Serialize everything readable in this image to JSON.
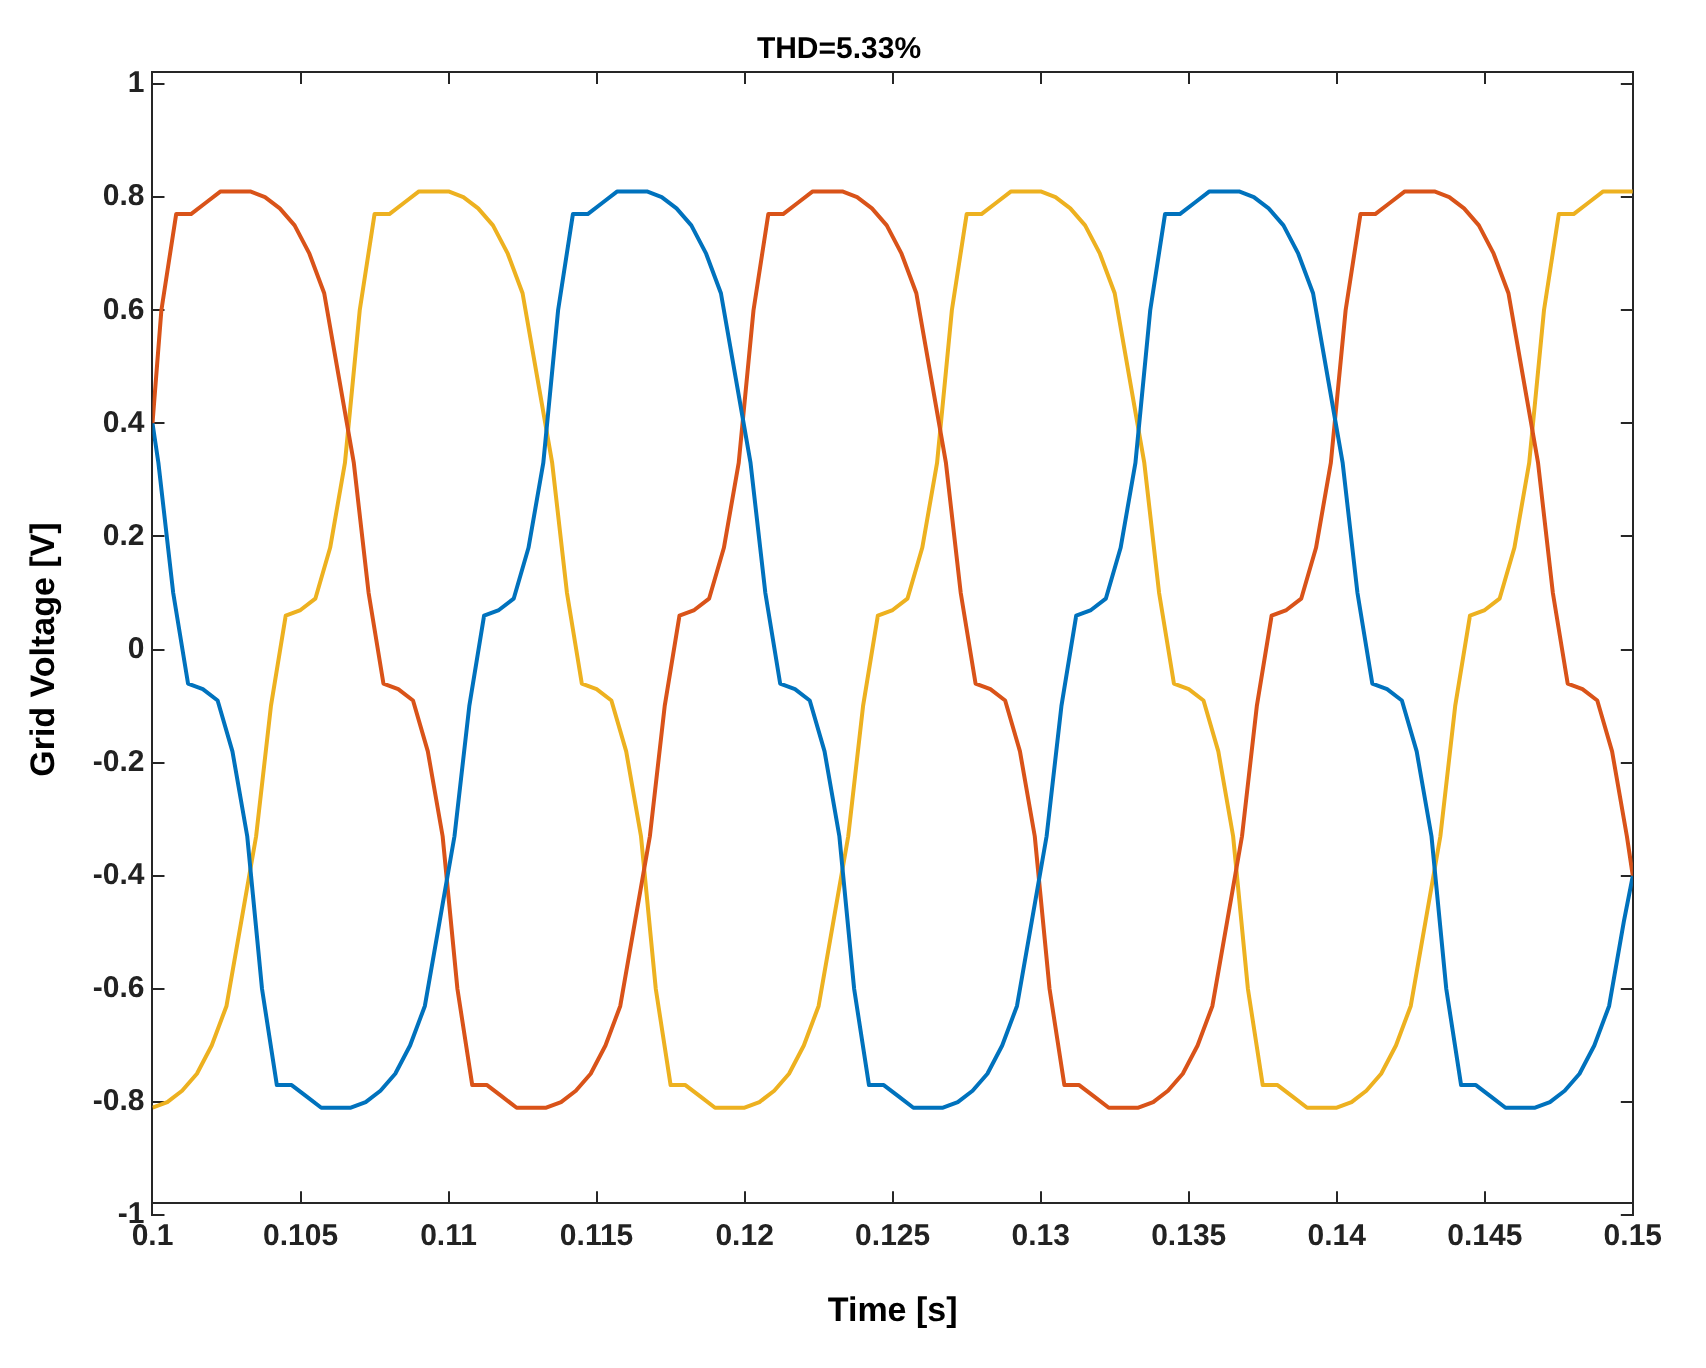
{
  "chart_data": {
    "type": "line",
    "title": "THD=5.33%",
    "xlabel": "Time [s]",
    "ylabel": "Grid Voltage [V]",
    "xlim": [
      0.1,
      0.15
    ],
    "xticks": [
      0.1,
      0.105,
      0.11,
      0.115,
      0.12,
      0.125,
      0.13,
      0.135,
      0.14,
      0.145,
      0.15
    ],
    "ylim": [
      -1,
      1
    ],
    "yticks": [
      -1,
      -0.8,
      -0.6,
      -0.4,
      -0.2,
      0,
      0.2,
      0.4,
      0.6,
      0.8,
      1
    ],
    "grid": false,
    "legend": false,
    "marker": "none",
    "line_style": "solid",
    "series": [
      {
        "color": "#0072bd",
        "x": [
          0.1,
          0.1002,
          0.1007,
          0.1012,
          0.1017,
          0.1022,
          0.1027,
          0.1032,
          0.1037,
          0.1042,
          0.1047,
          0.1052,
          0.1057,
          0.1062,
          0.1067,
          0.1072,
          0.1077,
          0.1082,
          0.1087,
          0.1092,
          0.1097,
          0.1102,
          0.1107,
          0.1112,
          0.1117,
          0.1122,
          0.1127,
          0.1132,
          0.1137,
          0.1142,
          0.1147,
          0.1152,
          0.1157,
          0.1162,
          0.1167,
          0.1172,
          0.1177,
          0.1182,
          0.1187,
          0.1192,
          0.1197,
          0.1202,
          0.1207,
          0.1212,
          0.1217,
          0.1222,
          0.1227,
          0.1232,
          0.1237,
          0.1242,
          0.1247,
          0.1252,
          0.1257,
          0.1262,
          0.1267,
          0.1272,
          0.1277,
          0.1282,
          0.1287,
          0.1292,
          0.1297,
          0.1302,
          0.1307,
          0.1312,
          0.1317,
          0.1322,
          0.1327,
          0.1332,
          0.1337,
          0.1342,
          0.1347,
          0.1352,
          0.1357,
          0.1362,
          0.1367,
          0.1372,
          0.1377,
          0.1382,
          0.1387,
          0.1392,
          0.1397,
          0.1402,
          0.1407,
          0.1412,
          0.1417,
          0.1422,
          0.1427,
          0.1432,
          0.1437,
          0.1442,
          0.1447,
          0.1452,
          0.1457,
          0.1462,
          0.1467,
          0.1472,
          0.1477,
          0.1482,
          0.1487,
          0.1492,
          0.1497,
          0.15
        ],
        "values": [
          0.4,
          0.33,
          0.1,
          -0.06,
          -0.07,
          -0.09,
          -0.18,
          -0.33,
          -0.6,
          -0.77,
          -0.77,
          -0.79,
          -0.81,
          -0.81,
          -0.81,
          -0.8,
          -0.78,
          -0.75,
          -0.7,
          -0.63,
          -0.48,
          -0.33,
          -0.1,
          0.06,
          0.07,
          0.09,
          0.18,
          0.33,
          0.6,
          0.77,
          0.77,
          0.79,
          0.81,
          0.81,
          0.81,
          0.8,
          0.78,
          0.75,
          0.7,
          0.63,
          0.48,
          0.33,
          0.1,
          -0.06,
          -0.07,
          -0.09,
          -0.18,
          -0.33,
          -0.6,
          -0.77,
          -0.77,
          -0.79,
          -0.81,
          -0.81,
          -0.81,
          -0.8,
          -0.78,
          -0.75,
          -0.7,
          -0.63,
          -0.48,
          -0.33,
          -0.1,
          0.06,
          0.07,
          0.09,
          0.18,
          0.33,
          0.6,
          0.77,
          0.77,
          0.79,
          0.81,
          0.81,
          0.81,
          0.8,
          0.78,
          0.75,
          0.7,
          0.63,
          0.48,
          0.33,
          0.1,
          -0.06,
          -0.07,
          -0.09,
          -0.18,
          -0.33,
          -0.6,
          -0.77,
          -0.77,
          -0.79,
          -0.81,
          -0.81,
          -0.81,
          -0.8,
          -0.78,
          -0.75,
          -0.7,
          -0.63,
          -0.48,
          -0.4
        ]
      },
      {
        "color": "#d95319",
        "x": [
          0.1,
          0.1003,
          0.1008,
          0.1013,
          0.1018,
          0.1023,
          0.1028,
          0.1033,
          0.1038,
          0.1043,
          0.1048,
          0.1053,
          0.1058,
          0.1063,
          0.1068,
          0.1073,
          0.1078,
          0.1083,
          0.1088,
          0.1093,
          0.1098,
          0.1103,
          0.1108,
          0.1113,
          0.1118,
          0.1123,
          0.1128,
          0.1133,
          0.1138,
          0.1143,
          0.1148,
          0.1153,
          0.1158,
          0.1163,
          0.1168,
          0.1173,
          0.1178,
          0.1183,
          0.1188,
          0.1193,
          0.1198,
          0.1203,
          0.1208,
          0.1213,
          0.1218,
          0.1223,
          0.1228,
          0.1233,
          0.1238,
          0.1243,
          0.1248,
          0.1253,
          0.1258,
          0.1263,
          0.1268,
          0.1273,
          0.1278,
          0.1283,
          0.1288,
          0.1293,
          0.1298,
          0.1303,
          0.1308,
          0.1313,
          0.1318,
          0.1323,
          0.1328,
          0.1333,
          0.1338,
          0.1343,
          0.1348,
          0.1353,
          0.1358,
          0.1363,
          0.1368,
          0.1373,
          0.1378,
          0.1383,
          0.1388,
          0.1393,
          0.1398,
          0.1403,
          0.1408,
          0.1413,
          0.1418,
          0.1423,
          0.1428,
          0.1433,
          0.1438,
          0.1443,
          0.1448,
          0.1453,
          0.1458,
          0.1463,
          0.1468,
          0.1473,
          0.1478,
          0.1483,
          0.1488,
          0.1493,
          0.1498,
          0.15
        ],
        "values": [
          0.4,
          0.6,
          0.77,
          0.77,
          0.79,
          0.81,
          0.81,
          0.81,
          0.8,
          0.78,
          0.75,
          0.7,
          0.63,
          0.48,
          0.33,
          0.1,
          -0.06,
          -0.07,
          -0.09,
          -0.18,
          -0.33,
          -0.6,
          -0.77,
          -0.77,
          -0.79,
          -0.81,
          -0.81,
          -0.81,
          -0.8,
          -0.78,
          -0.75,
          -0.7,
          -0.63,
          -0.48,
          -0.33,
          -0.1,
          0.06,
          0.07,
          0.09,
          0.18,
          0.33,
          0.6,
          0.77,
          0.77,
          0.79,
          0.81,
          0.81,
          0.81,
          0.8,
          0.78,
          0.75,
          0.7,
          0.63,
          0.48,
          0.33,
          0.1,
          -0.06,
          -0.07,
          -0.09,
          -0.18,
          -0.33,
          -0.6,
          -0.77,
          -0.77,
          -0.79,
          -0.81,
          -0.81,
          -0.81,
          -0.8,
          -0.78,
          -0.75,
          -0.7,
          -0.63,
          -0.48,
          -0.33,
          -0.1,
          0.06,
          0.07,
          0.09,
          0.18,
          0.33,
          0.6,
          0.77,
          0.77,
          0.79,
          0.81,
          0.81,
          0.81,
          0.8,
          0.78,
          0.75,
          0.7,
          0.63,
          0.48,
          0.33,
          0.1,
          -0.06,
          -0.07,
          -0.09,
          -0.18,
          -0.33,
          -0.4
        ]
      },
      {
        "color": "#edb120",
        "x": [
          0.1,
          0.1005,
          0.101,
          0.1015,
          0.102,
          0.1025,
          0.103,
          0.1035,
          0.104,
          0.1045,
          0.105,
          0.1055,
          0.106,
          0.1065,
          0.107,
          0.1075,
          0.108,
          0.1085,
          0.109,
          0.1095,
          0.11,
          0.1105,
          0.111,
          0.1115,
          0.112,
          0.1125,
          0.113,
          0.1135,
          0.114,
          0.1145,
          0.115,
          0.1155,
          0.116,
          0.1165,
          0.117,
          0.1175,
          0.118,
          0.1185,
          0.119,
          0.1195,
          0.12,
          0.1205,
          0.121,
          0.1215,
          0.122,
          0.1225,
          0.123,
          0.1235,
          0.124,
          0.1245,
          0.125,
          0.1255,
          0.126,
          0.1265,
          0.127,
          0.1275,
          0.128,
          0.1285,
          0.129,
          0.1295,
          0.13,
          0.1305,
          0.131,
          0.1315,
          0.132,
          0.1325,
          0.133,
          0.1335,
          0.134,
          0.1345,
          0.135,
          0.1355,
          0.136,
          0.1365,
          0.137,
          0.1375,
          0.138,
          0.1385,
          0.139,
          0.1395,
          0.14,
          0.1405,
          0.141,
          0.1415,
          0.142,
          0.1425,
          0.143,
          0.1435,
          0.144,
          0.1445,
          0.145,
          0.1455,
          0.146,
          0.1465,
          0.147,
          0.1475,
          0.148,
          0.1485,
          0.149,
          0.1495,
          0.15
        ],
        "values": [
          -0.81,
          -0.8,
          -0.78,
          -0.75,
          -0.7,
          -0.63,
          -0.48,
          -0.33,
          -0.1,
          0.06,
          0.07,
          0.09,
          0.18,
          0.33,
          0.6,
          0.77,
          0.77,
          0.79,
          0.81,
          0.81,
          0.81,
          0.8,
          0.78,
          0.75,
          0.7,
          0.63,
          0.48,
          0.33,
          0.1,
          -0.06,
          -0.07,
          -0.09,
          -0.18,
          -0.33,
          -0.6,
          -0.77,
          -0.77,
          -0.79,
          -0.81,
          -0.81,
          -0.81,
          -0.8,
          -0.78,
          -0.75,
          -0.7,
          -0.63,
          -0.48,
          -0.33,
          -0.1,
          0.06,
          0.07,
          0.09,
          0.18,
          0.33,
          0.6,
          0.77,
          0.77,
          0.79,
          0.81,
          0.81,
          0.81,
          0.8,
          0.78,
          0.75,
          0.7,
          0.63,
          0.48,
          0.33,
          0.1,
          -0.06,
          -0.07,
          -0.09,
          -0.18,
          -0.33,
          -0.6,
          -0.77,
          -0.77,
          -0.79,
          -0.81,
          -0.81,
          -0.81,
          -0.8,
          -0.78,
          -0.75,
          -0.7,
          -0.63,
          -0.48,
          -0.33,
          -0.1,
          0.06,
          0.07,
          0.09,
          0.18,
          0.33,
          0.6,
          0.77,
          0.77,
          0.79,
          0.81,
          0.81,
          0.81
        ]
      }
    ]
  }
}
